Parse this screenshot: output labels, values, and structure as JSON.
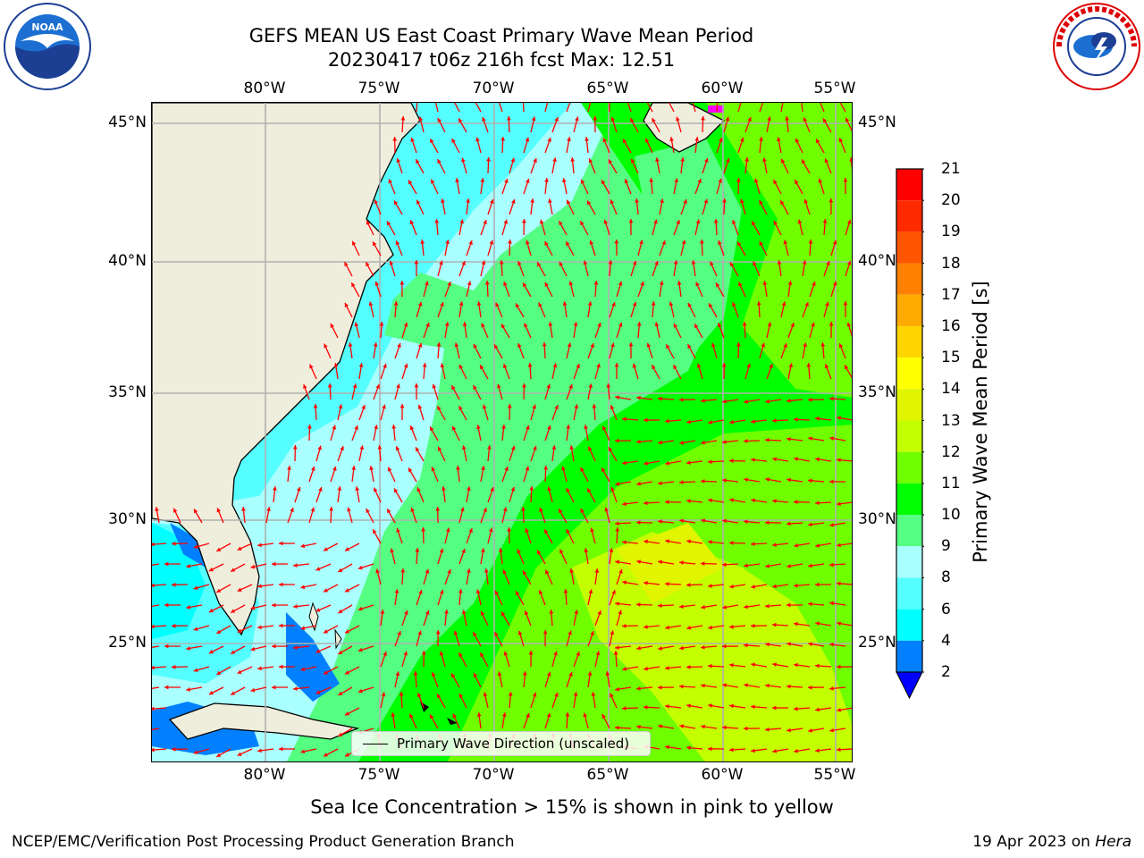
{
  "header": {
    "title_line1": "GEFS MEAN US East Coast Primary Wave Mean Period",
    "title_line2": "20230417 t06z 216h fcst   Max: 12.51"
  },
  "logos": {
    "left": "noaa-logo",
    "right": "nws-logo"
  },
  "map": {
    "lon_ticks": [
      "80°W",
      "75°W",
      "70°W",
      "65°W",
      "60°W",
      "55°W"
    ],
    "lat_ticks": [
      "45°N",
      "40°N",
      "35°N",
      "30°N",
      "25°N"
    ],
    "legend_label": "Primary Wave Direction (unscaled)",
    "colors": {
      "land": "#efeedd",
      "ocean": "#ffffff",
      "grid": "#b0b0b0",
      "arrow": "#ff0000",
      "ice": "#ff00ff"
    }
  },
  "colorbar": {
    "label": "Primary Wave Mean Period [s]",
    "ticks": [
      "21",
      "20",
      "19",
      "18",
      "17",
      "16",
      "15",
      "14",
      "13",
      "12",
      "11",
      "10",
      "9",
      "8",
      "6",
      "4",
      "2"
    ],
    "bands": [
      {
        "from": "20",
        "to": "21",
        "color": "#ff0000"
      },
      {
        "from": "19",
        "to": "20",
        "color": "#ff2a00"
      },
      {
        "from": "18",
        "to": "19",
        "color": "#ff5500"
      },
      {
        "from": "17",
        "to": "18",
        "color": "#ff8000"
      },
      {
        "from": "16",
        "to": "17",
        "color": "#ffaa00"
      },
      {
        "from": "15",
        "to": "16",
        "color": "#ffd500"
      },
      {
        "from": "14",
        "to": "15",
        "color": "#ffff00"
      },
      {
        "from": "13",
        "to": "14",
        "color": "#e1f500"
      },
      {
        "from": "12",
        "to": "13",
        "color": "#c3ff00"
      },
      {
        "from": "11",
        "to": "12",
        "color": "#6fff00"
      },
      {
        "from": "10",
        "to": "11",
        "color": "#00ff00"
      },
      {
        "from": "9",
        "to": "10",
        "color": "#55ff82"
      },
      {
        "from": "8",
        "to": "9",
        "color": "#aaffff"
      },
      {
        "from": "6",
        "to": "8",
        "color": "#55ffff"
      },
      {
        "from": "4",
        "to": "6",
        "color": "#00ffff"
      },
      {
        "from": "2",
        "to": "4",
        "color": "#0080ff"
      }
    ],
    "under_color": "#0000ff"
  },
  "footnote": "Sea Ice Concentration > 15% is shown in pink to yellow",
  "credit": "NCEP/EMC/Verification Post Processing Product Generation Branch",
  "run_date": "19 Apr 2023 on",
  "run_host": "Hera"
}
